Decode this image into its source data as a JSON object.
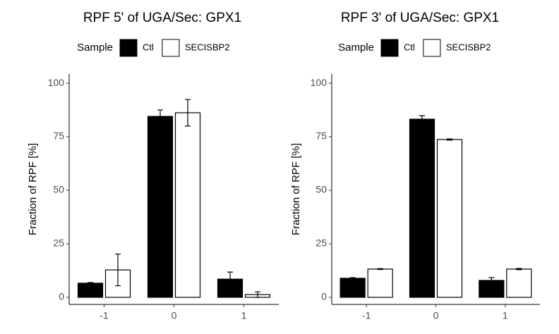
{
  "chart_data": [
    {
      "type": "bar",
      "title": "RPF 5' of UGA/Sec: GPX1",
      "y_label": "Fraction of RPF [%]",
      "legend_title": "Sample",
      "categories": [
        "-1",
        "0",
        "1"
      ],
      "series": [
        {
          "name": "Ctl",
          "color": "#000000",
          "values": [
            6.6,
            84.5,
            8.5
          ],
          "errors": [
            0.3,
            3,
            3.3
          ]
        },
        {
          "name": "SECISBP2",
          "color": "#ffffff",
          "values": [
            12.8,
            86.2,
            1.3
          ],
          "errors": [
            7.4,
            6.2,
            1.3
          ]
        }
      ],
      "ylim": [
        -3.3,
        104.3
      ],
      "yticks": [
        0,
        25,
        50,
        75,
        100
      ],
      "edgecolor": "#000000"
    },
    {
      "type": "bar",
      "title": "RPF 3' of UGA/Sec: GPX1",
      "y_label": "Fraction of RPF [%]",
      "legend_title": "Sample",
      "categories": [
        "-1",
        "0",
        "1"
      ],
      "series": [
        {
          "name": "Ctl",
          "color": "#000000",
          "values": [
            8.9,
            83.2,
            7.9
          ],
          "errors": [
            0.3,
            1.6,
            1.3
          ]
        },
        {
          "name": "SECISBP2",
          "color": "#ffffff",
          "values": [
            13.2,
            73.7,
            13.2
          ],
          "errors": [
            0.2,
            0.3,
            0.3
          ]
        }
      ],
      "ylim": [
        -3.3,
        104.3
      ],
      "yticks": [
        0,
        25,
        50,
        75,
        100
      ],
      "edgecolor": "#000000"
    }
  ]
}
